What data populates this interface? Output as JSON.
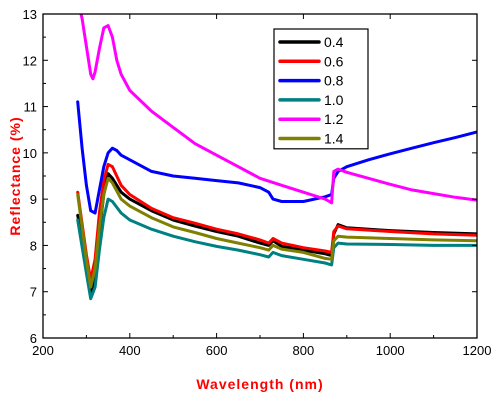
{
  "chart_data": {
    "type": "line",
    "title": "",
    "xlabel": "Wavelength (nm)",
    "ylabel": "Reflectance (%)",
    "xlim": [
      200,
      1200
    ],
    "ylim": [
      6,
      13
    ],
    "xticks": [
      200,
      400,
      600,
      800,
      1000,
      1200
    ],
    "yticks": [
      6,
      7,
      8,
      9,
      10,
      11,
      12,
      13
    ],
    "grid": false,
    "legend_position": "top-right",
    "series": [
      {
        "name": "0.4",
        "color": "#000000",
        "x": [
          280,
          300,
          310,
          320,
          330,
          340,
          350,
          360,
          380,
          400,
          450,
          500,
          550,
          600,
          650,
          700,
          720,
          730,
          750,
          800,
          850,
          865,
          870,
          880,
          900,
          1000,
          1100,
          1200
        ],
        "y": [
          8.65,
          7.6,
          6.9,
          7.3,
          8.3,
          9.1,
          9.55,
          9.45,
          9.15,
          9.0,
          8.75,
          8.55,
          8.42,
          8.3,
          8.2,
          8.05,
          8.0,
          8.1,
          7.98,
          7.9,
          7.82,
          7.78,
          8.25,
          8.45,
          8.38,
          8.32,
          8.28,
          8.25
        ]
      },
      {
        "name": "0.6",
        "color": "#ff0000",
        "x": [
          280,
          300,
          310,
          320,
          330,
          340,
          350,
          360,
          380,
          400,
          450,
          500,
          550,
          600,
          650,
          700,
          720,
          730,
          750,
          800,
          850,
          865,
          870,
          880,
          900,
          1000,
          1100,
          1200
        ],
        "y": [
          9.15,
          7.8,
          7.25,
          7.7,
          8.7,
          9.4,
          9.75,
          9.7,
          9.3,
          9.1,
          8.8,
          8.6,
          8.48,
          8.35,
          8.25,
          8.12,
          8.05,
          8.15,
          8.05,
          7.95,
          7.88,
          7.85,
          8.3,
          8.42,
          8.36,
          8.3,
          8.25,
          8.22
        ]
      },
      {
        "name": "0.8",
        "color": "#0000ff",
        "x": [
          280,
          290,
          300,
          310,
          320,
          330,
          340,
          350,
          360,
          370,
          380,
          400,
          450,
          500,
          550,
          600,
          650,
          700,
          720,
          730,
          750,
          800,
          850,
          865,
          870,
          880,
          900,
          950,
          1000,
          1050,
          1100,
          1150,
          1200
        ],
        "y": [
          11.1,
          10.1,
          9.3,
          8.75,
          8.7,
          9.2,
          9.7,
          10.0,
          10.1,
          10.05,
          9.95,
          9.85,
          9.6,
          9.5,
          9.45,
          9.4,
          9.35,
          9.25,
          9.15,
          9.0,
          8.95,
          8.95,
          9.05,
          9.1,
          9.45,
          9.6,
          9.7,
          9.85,
          9.98,
          10.1,
          10.22,
          10.33,
          10.45
        ]
      },
      {
        "name": "1.0",
        "color": "#008080",
        "x": [
          280,
          300,
          310,
          320,
          330,
          340,
          350,
          360,
          380,
          400,
          450,
          500,
          550,
          600,
          650,
          700,
          720,
          730,
          750,
          800,
          850,
          865,
          870,
          880,
          900,
          1000,
          1100,
          1200
        ],
        "y": [
          8.55,
          7.4,
          6.85,
          7.1,
          7.9,
          8.6,
          9.0,
          8.95,
          8.7,
          8.55,
          8.35,
          8.2,
          8.08,
          7.98,
          7.9,
          7.8,
          7.75,
          7.85,
          7.78,
          7.7,
          7.62,
          7.58,
          7.95,
          8.05,
          8.03,
          8.02,
          8.0,
          8.0
        ]
      },
      {
        "name": "1.2",
        "color": "#ff00ff",
        "x": [
          280,
          290,
          300,
          310,
          315,
          320,
          330,
          340,
          350,
          360,
          370,
          380,
          400,
          450,
          500,
          550,
          600,
          650,
          700,
          750,
          800,
          850,
          860,
          865,
          870,
          880,
          900,
          950,
          1000,
          1050,
          1100,
          1150,
          1200
        ],
        "y": [
          13.3,
          12.9,
          12.3,
          11.7,
          11.6,
          11.75,
          12.25,
          12.7,
          12.75,
          12.5,
          12.0,
          11.7,
          11.35,
          10.9,
          10.55,
          10.2,
          9.95,
          9.7,
          9.45,
          9.3,
          9.15,
          9.0,
          8.95,
          8.92,
          9.6,
          9.65,
          9.58,
          9.45,
          9.32,
          9.2,
          9.12,
          9.04,
          8.98
        ]
      },
      {
        "name": "1.4",
        "color": "#808000",
        "x": [
          280,
          300,
          310,
          320,
          330,
          340,
          350,
          360,
          380,
          400,
          450,
          500,
          550,
          600,
          650,
          700,
          720,
          730,
          750,
          800,
          850,
          865,
          870,
          880,
          900,
          1000,
          1100,
          1200
        ],
        "y": [
          9.1,
          7.7,
          7.1,
          7.5,
          8.4,
          9.1,
          9.45,
          9.35,
          9.0,
          8.85,
          8.6,
          8.4,
          8.28,
          8.15,
          8.05,
          7.95,
          7.9,
          8.0,
          7.92,
          7.85,
          7.72,
          7.7,
          8.1,
          8.2,
          8.18,
          8.15,
          8.12,
          8.1
        ]
      }
    ]
  }
}
